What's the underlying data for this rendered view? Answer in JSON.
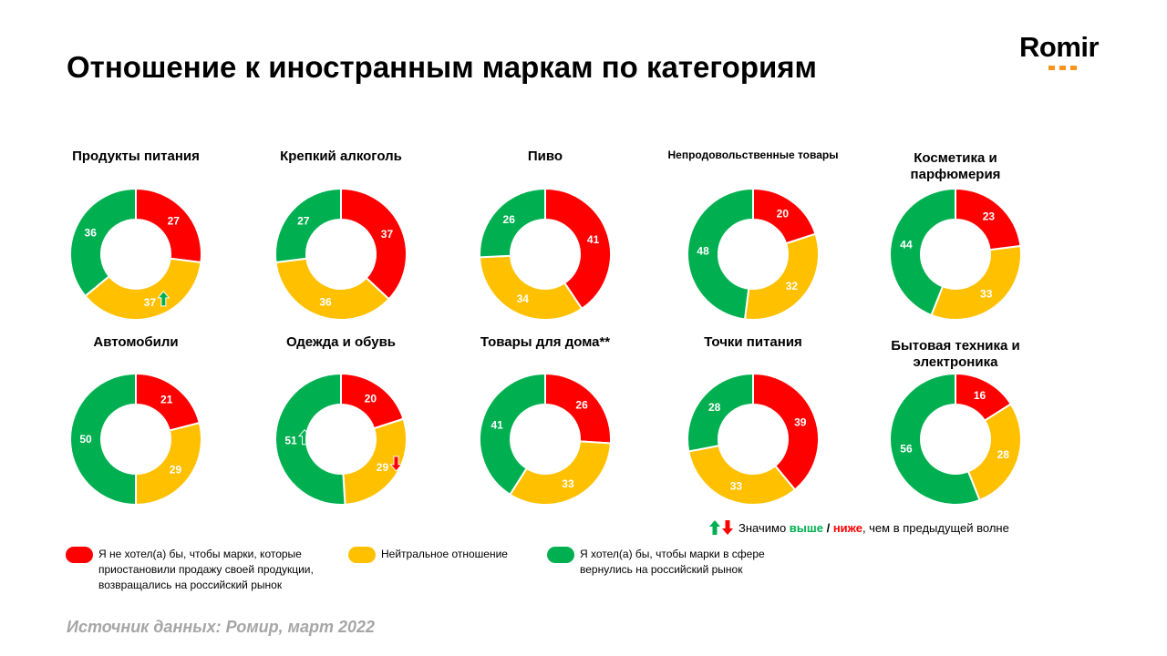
{
  "title": "Отношение к иностранным маркам по категориям",
  "logo": {
    "text": "Romir",
    "accent": "#f7941d"
  },
  "colors": {
    "negative": "#ff0000",
    "neutral": "#ffc000",
    "positive": "#00b050"
  },
  "chart_data": {
    "type": "donut",
    "series_order": [
      "negative",
      "neutral",
      "positive"
    ],
    "charts": [
      {
        "title": "Продукты питания",
        "values": [
          27,
          37,
          36
        ],
        "arrows": [
          null,
          "up-green",
          null
        ]
      },
      {
        "title": "Крепкий алкоголь",
        "values": [
          37,
          36,
          27
        ],
        "arrows": [
          null,
          null,
          null
        ]
      },
      {
        "title": "Пиво",
        "values": [
          41,
          34,
          26
        ],
        "arrows": [
          null,
          null,
          null
        ]
      },
      {
        "title": "Непродовольственные товары",
        "values": [
          20,
          32,
          48
        ],
        "arrows": [
          null,
          null,
          null
        ]
      },
      {
        "title": "Косметика и парфюмерия",
        "values": [
          23,
          33,
          44
        ],
        "arrows": [
          null,
          null,
          null
        ]
      },
      {
        "title": "Автомобили",
        "values": [
          21,
          29,
          50
        ],
        "arrows": [
          null,
          null,
          null
        ]
      },
      {
        "title": "Одежда и обувь",
        "values": [
          20,
          29,
          51
        ],
        "arrows": [
          null,
          "down-red",
          "up-white"
        ]
      },
      {
        "title": "Товары для дома**",
        "values": [
          26,
          33,
          41
        ],
        "arrows": [
          null,
          null,
          null
        ]
      },
      {
        "title": "Точки питания",
        "values": [
          39,
          33,
          28
        ],
        "arrows": [
          null,
          null,
          null
        ]
      },
      {
        "title": "Бытовая техника и электроника",
        "values": [
          16,
          28,
          56
        ],
        "arrows": [
          null,
          null,
          null
        ]
      }
    ]
  },
  "significance": {
    "prefix": "Значимо ",
    "higher": "выше",
    "sep": " / ",
    "lower": "ниже",
    "suffix": ", чем в предыдущей волне"
  },
  "legend": [
    {
      "label": "Я не хотел(а) бы, чтобы марки, которые приостановили продажу своей продукции, возвращались на российский рынок"
    },
    {
      "label": "Нейтральное отношение"
    },
    {
      "label": "Я хотел(а) бы, чтобы марки в сфере вернулись на российский рынок"
    }
  ],
  "source": "Источник данных: Ромир, март 2022"
}
